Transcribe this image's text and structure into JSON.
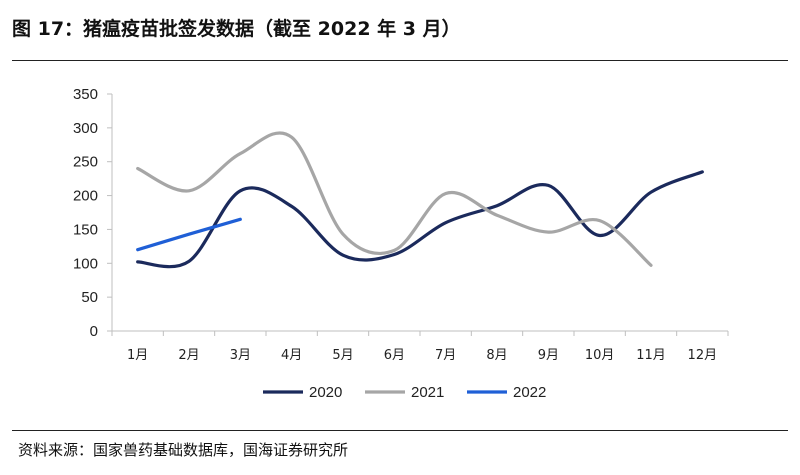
{
  "title": "图 17：猪瘟疫苗批签发数据（截至 2022 年 3 月）",
  "source": "资料来源：国家兽药基础数据库，国海证券研究所",
  "colors": {
    "s2020": "#1b2a5c",
    "s2021": "#a6a6a6",
    "s2022": "#1f5fd6",
    "axis": "#bfbfbf"
  },
  "chart_data": {
    "type": "line",
    "categories": [
      "1月",
      "2月",
      "3月",
      "4月",
      "5月",
      "6月",
      "7月",
      "8月",
      "9月",
      "10月",
      "11月",
      "12月"
    ],
    "ylim": [
      0,
      350
    ],
    "yticks": [
      0,
      50,
      100,
      150,
      200,
      250,
      300,
      350
    ],
    "grid": false,
    "legend": "bottom",
    "series": [
      {
        "name": "2020",
        "values": [
          102,
          103,
          207,
          184,
          112,
          113,
          160,
          185,
          215,
          141,
          205,
          235
        ]
      },
      {
        "name": "2021",
        "values": [
          240,
          207,
          262,
          286,
          143,
          119,
          203,
          171,
          146,
          163,
          97,
          null
        ]
      },
      {
        "name": "2022",
        "values": [
          120,
          143,
          165,
          null,
          null,
          null,
          null,
          null,
          null,
          null,
          null,
          null
        ]
      }
    ]
  }
}
